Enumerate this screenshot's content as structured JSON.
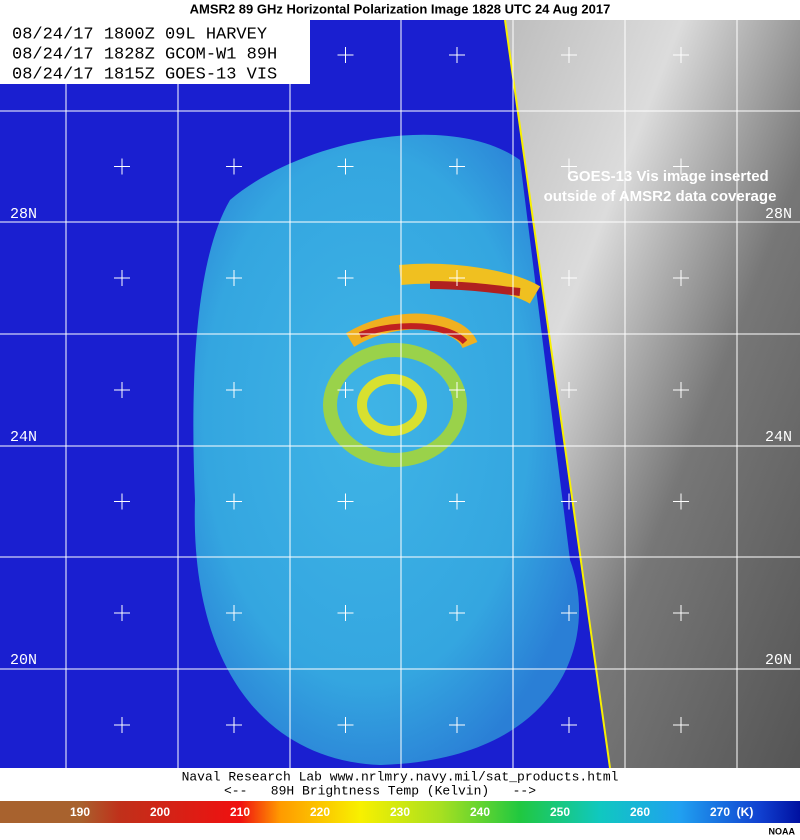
{
  "header": {
    "title": "AMSR2 89 GHz Horizontal Polarization Image  1828 UTC  24 Aug 2017"
  },
  "info_box": {
    "lines": [
      "08/24/17 1800Z 09L HARVEY",
      "08/24/17 1828Z GCOM-W1 89H",
      "08/24/17 1815Z GOES-13 VIS"
    ]
  },
  "annotation": {
    "lines": [
      "GOES-13 Vis image inserted",
      "outside of AMSR2 data coverage"
    ]
  },
  "latitude_labels": {
    "left": [
      "28N",
      "24N",
      "20N"
    ],
    "right": [
      "28N",
      "24N",
      "20N"
    ]
  },
  "footer": {
    "credit": "Naval Research Lab  www.nrlmry.navy.mil/sat_products.html",
    "scale_caption": "<--   89H Brightness Temp (Kelvin)   -->"
  },
  "color_scale": {
    "ticks": [
      190,
      200,
      210,
      220,
      230,
      240,
      250,
      260,
      270
    ],
    "unit": "(K)"
  },
  "source": "NOAA"
}
